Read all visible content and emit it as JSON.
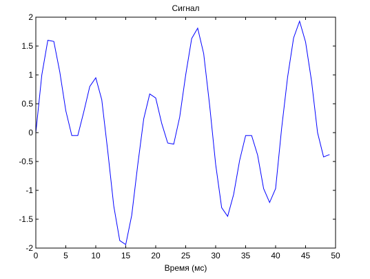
{
  "chart_data": {
    "type": "line",
    "title": "Сигнал",
    "xlabel": "Время (мс)",
    "ylabel": "",
    "xlim": [
      0,
      50
    ],
    "ylim": [
      -2,
      2
    ],
    "xticks": [
      0,
      5,
      10,
      15,
      20,
      25,
      30,
      35,
      40,
      45,
      50
    ],
    "xtick_labels": [
      "0",
      "5",
      "10",
      "15",
      "20",
      "25",
      "30",
      "35",
      "40",
      "45",
      "50"
    ],
    "yticks": [
      -2,
      -1.5,
      -1,
      -0.5,
      0,
      0.5,
      1,
      1.5,
      2
    ],
    "ytick_labels": [
      "-2",
      "-1.5",
      "-1",
      "-0.5",
      "0",
      "0.5",
      "1",
      "1.5",
      "2"
    ],
    "grid": false,
    "legend": false,
    "series": [
      {
        "color": "#0000ff",
        "x": [
          0,
          1,
          2,
          3,
          4,
          5,
          6,
          7,
          8,
          9,
          10,
          11,
          12,
          13,
          14,
          15,
          16,
          17,
          18,
          19,
          20,
          21,
          22,
          23,
          24,
          25,
          26,
          27,
          28,
          29,
          30,
          31,
          32,
          33,
          34,
          35,
          36,
          37,
          38,
          39,
          40,
          41,
          42,
          43,
          44,
          45,
          46,
          47,
          48,
          49
        ],
        "y": [
          0.0,
          1.0,
          1.6,
          1.58,
          1.05,
          0.38,
          -0.05,
          -0.05,
          0.36,
          0.8,
          0.95,
          0.57,
          -0.32,
          -1.27,
          -1.87,
          -1.94,
          -1.43,
          -0.56,
          0.24,
          0.67,
          0.6,
          0.16,
          -0.18,
          -0.2,
          0.27,
          1.0,
          1.63,
          1.81,
          1.37,
          0.47,
          -0.55,
          -1.3,
          -1.45,
          -1.07,
          -0.48,
          -0.05,
          -0.05,
          -0.39,
          -0.97,
          -1.21,
          -0.97,
          0.07,
          0.96,
          1.64,
          1.93,
          1.57,
          0.89,
          0.0,
          -0.42,
          -0.38
        ]
      }
    ]
  }
}
